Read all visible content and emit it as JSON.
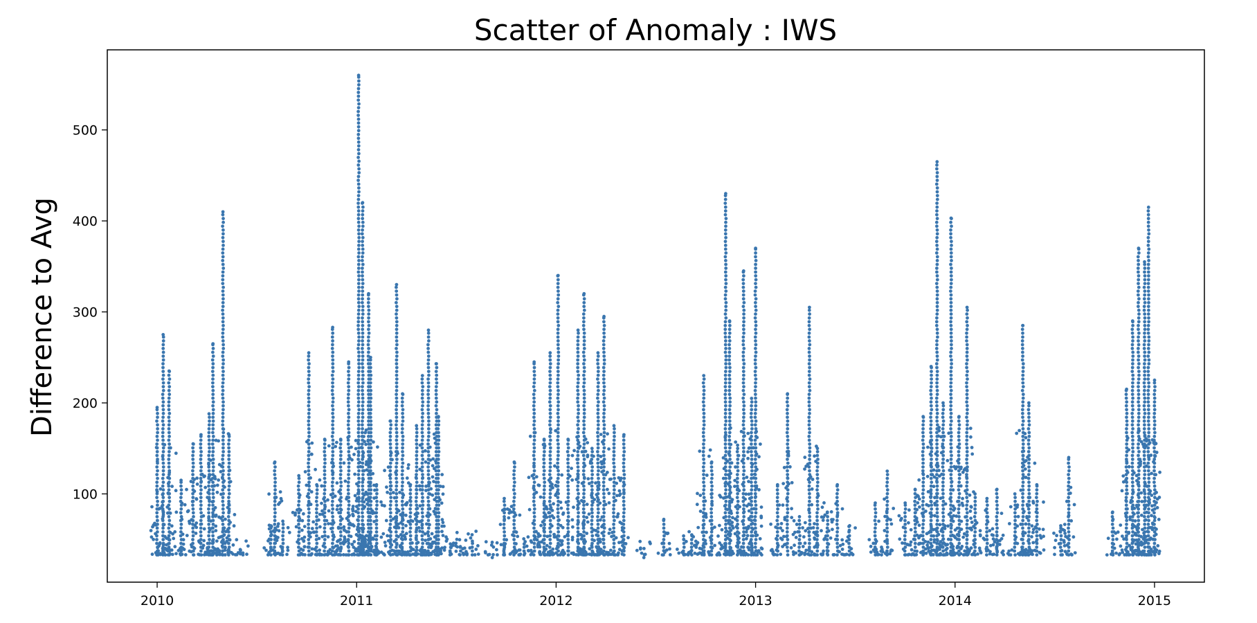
{
  "chart_data": {
    "type": "scatter",
    "title": "Scatter of Anomaly : IWS",
    "xlabel": "",
    "ylabel": "Difference to Avg",
    "x_ticks": [
      2010,
      2011,
      2012,
      2013,
      2014,
      2015
    ],
    "y_ticks": [
      100,
      200,
      300,
      400,
      500
    ],
    "xlim": [
      2009.75,
      2015.25
    ],
    "ylim": [
      3,
      588
    ],
    "grid": false,
    "legend": "none",
    "marker_color": "#3a76af",
    "series": [
      {
        "name": "",
        "peaks": [
          {
            "x": 2010.0,
            "y": 195
          },
          {
            "x": 2010.03,
            "y": 275
          },
          {
            "x": 2010.06,
            "y": 235
          },
          {
            "x": 2010.12,
            "y": 115
          },
          {
            "x": 2010.18,
            "y": 155
          },
          {
            "x": 2010.22,
            "y": 165
          },
          {
            "x": 2010.26,
            "y": 188
          },
          {
            "x": 2010.28,
            "y": 265
          },
          {
            "x": 2010.33,
            "y": 410
          },
          {
            "x": 2010.36,
            "y": 165
          },
          {
            "x": 2010.43,
            "y": 35
          },
          {
            "x": 2010.57,
            "y": 65
          },
          {
            "x": 2010.59,
            "y": 135
          },
          {
            "x": 2010.63,
            "y": 70
          },
          {
            "x": 2010.71,
            "y": 120
          },
          {
            "x": 2010.76,
            "y": 255
          },
          {
            "x": 2010.8,
            "y": 110
          },
          {
            "x": 2010.84,
            "y": 160
          },
          {
            "x": 2010.88,
            "y": 283
          },
          {
            "x": 2010.92,
            "y": 160
          },
          {
            "x": 2010.96,
            "y": 245
          },
          {
            "x": 2011.01,
            "y": 560
          },
          {
            "x": 2011.03,
            "y": 420
          },
          {
            "x": 2011.06,
            "y": 320
          },
          {
            "x": 2011.07,
            "y": 250
          },
          {
            "x": 2011.1,
            "y": 110
          },
          {
            "x": 2011.17,
            "y": 180
          },
          {
            "x": 2011.2,
            "y": 330
          },
          {
            "x": 2011.23,
            "y": 210
          },
          {
            "x": 2011.27,
            "y": 110
          },
          {
            "x": 2011.3,
            "y": 175
          },
          {
            "x": 2011.33,
            "y": 230
          },
          {
            "x": 2011.36,
            "y": 280
          },
          {
            "x": 2011.4,
            "y": 243
          },
          {
            "x": 2011.41,
            "y": 185
          },
          {
            "x": 2011.47,
            "y": 45
          },
          {
            "x": 2011.52,
            "y": 42
          },
          {
            "x": 2011.58,
            "y": 48
          },
          {
            "x": 2011.68,
            "y": 30
          },
          {
            "x": 2011.74,
            "y": 95
          },
          {
            "x": 2011.79,
            "y": 135
          },
          {
            "x": 2011.84,
            "y": 45
          },
          {
            "x": 2011.89,
            "y": 245
          },
          {
            "x": 2011.94,
            "y": 160
          },
          {
            "x": 2011.97,
            "y": 255
          },
          {
            "x": 2012.01,
            "y": 340
          },
          {
            "x": 2012.06,
            "y": 160
          },
          {
            "x": 2012.11,
            "y": 280
          },
          {
            "x": 2012.14,
            "y": 320
          },
          {
            "x": 2012.18,
            "y": 150
          },
          {
            "x": 2012.21,
            "y": 255
          },
          {
            "x": 2012.24,
            "y": 295
          },
          {
            "x": 2012.29,
            "y": 175
          },
          {
            "x": 2012.34,
            "y": 165
          },
          {
            "x": 2012.44,
            "y": 30
          },
          {
            "x": 2012.54,
            "y": 72
          },
          {
            "x": 2012.64,
            "y": 50
          },
          {
            "x": 2012.68,
            "y": 55
          },
          {
            "x": 2012.74,
            "y": 230
          },
          {
            "x": 2012.78,
            "y": 135
          },
          {
            "x": 2012.85,
            "y": 430
          },
          {
            "x": 2012.87,
            "y": 290
          },
          {
            "x": 2012.91,
            "y": 150
          },
          {
            "x": 2012.94,
            "y": 345
          },
          {
            "x": 2012.98,
            "y": 205
          },
          {
            "x": 2013.0,
            "y": 370
          },
          {
            "x": 2013.11,
            "y": 110
          },
          {
            "x": 2013.16,
            "y": 210
          },
          {
            "x": 2013.22,
            "y": 75
          },
          {
            "x": 2013.27,
            "y": 305
          },
          {
            "x": 2013.31,
            "y": 150
          },
          {
            "x": 2013.36,
            "y": 80
          },
          {
            "x": 2013.41,
            "y": 110
          },
          {
            "x": 2013.47,
            "y": 60
          },
          {
            "x": 2013.6,
            "y": 90
          },
          {
            "x": 2013.66,
            "y": 125
          },
          {
            "x": 2013.75,
            "y": 90
          },
          {
            "x": 2013.8,
            "y": 105
          },
          {
            "x": 2013.84,
            "y": 185
          },
          {
            "x": 2013.88,
            "y": 240
          },
          {
            "x": 2013.91,
            "y": 465
          },
          {
            "x": 2013.94,
            "y": 200
          },
          {
            "x": 2013.98,
            "y": 403
          },
          {
            "x": 2014.02,
            "y": 185
          },
          {
            "x": 2014.06,
            "y": 305
          },
          {
            "x": 2014.1,
            "y": 100
          },
          {
            "x": 2014.16,
            "y": 95
          },
          {
            "x": 2014.21,
            "y": 105
          },
          {
            "x": 2014.3,
            "y": 100
          },
          {
            "x": 2014.34,
            "y": 285
          },
          {
            "x": 2014.37,
            "y": 200
          },
          {
            "x": 2014.41,
            "y": 110
          },
          {
            "x": 2014.53,
            "y": 65
          },
          {
            "x": 2014.57,
            "y": 140
          },
          {
            "x": 2014.79,
            "y": 80
          },
          {
            "x": 2014.86,
            "y": 215
          },
          {
            "x": 2014.89,
            "y": 290
          },
          {
            "x": 2014.92,
            "y": 370
          },
          {
            "x": 2014.95,
            "y": 355
          },
          {
            "x": 2014.97,
            "y": 415
          },
          {
            "x": 2015.0,
            "y": 225
          }
        ]
      }
    ]
  }
}
